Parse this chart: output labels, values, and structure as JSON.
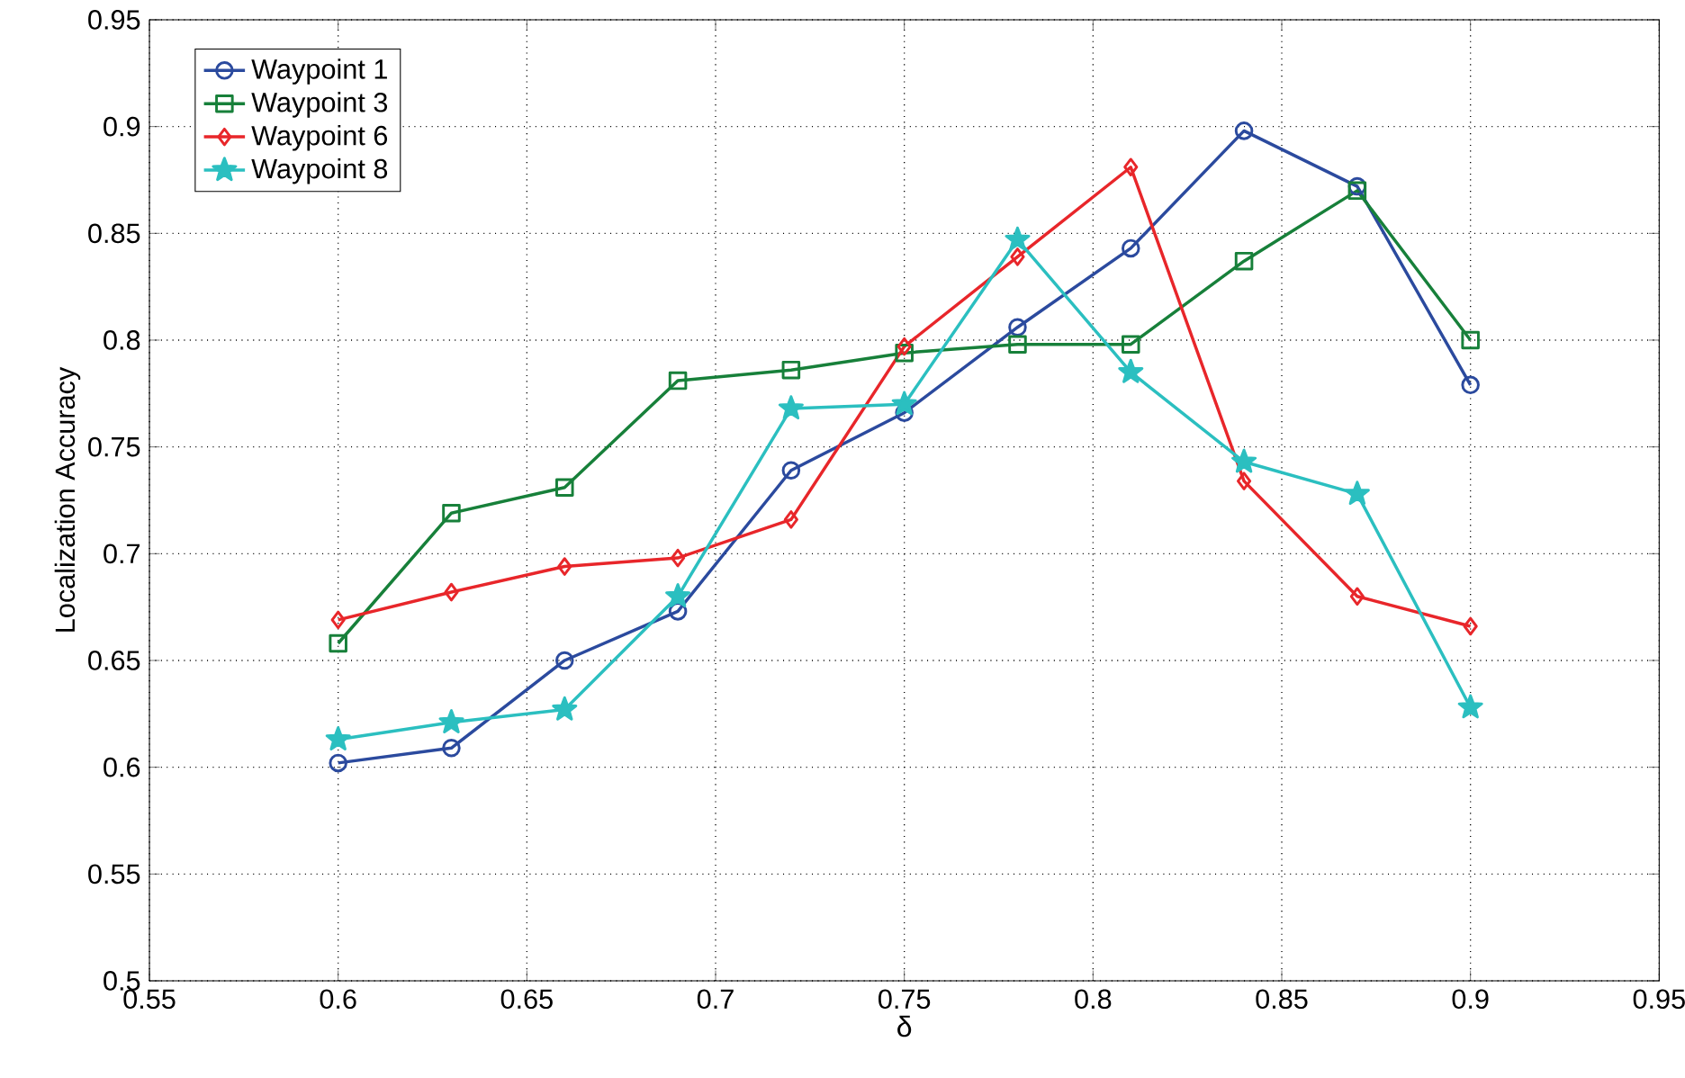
{
  "chart_data": {
    "type": "line",
    "xlabel": "δ",
    "ylabel": "Localization Accuracy",
    "x": [
      0.6,
      0.63,
      0.66,
      0.69,
      0.72,
      0.75,
      0.78,
      0.81,
      0.84,
      0.87,
      0.9
    ],
    "series": [
      {
        "name": "Waypoint 1",
        "color": "#2b4a9e",
        "marker": "circle",
        "values": [
          0.602,
          0.609,
          0.65,
          0.673,
          0.739,
          0.766,
          0.806,
          0.843,
          0.898,
          0.872,
          0.779
        ]
      },
      {
        "name": "Waypoint 3",
        "color": "#17803a",
        "marker": "square",
        "values": [
          0.658,
          0.719,
          0.731,
          0.781,
          0.786,
          0.794,
          0.798,
          0.798,
          0.837,
          0.87,
          0.8
        ]
      },
      {
        "name": "Waypoint 6",
        "color": "#e8262a",
        "marker": "diamond",
        "values": [
          0.669,
          0.682,
          0.694,
          0.698,
          0.716,
          0.797,
          0.839,
          0.881,
          0.734,
          0.68,
          0.666
        ]
      },
      {
        "name": "Waypoint 8",
        "color": "#2bbfc0",
        "marker": "star",
        "values": [
          0.613,
          0.621,
          0.627,
          0.68,
          0.768,
          0.77,
          0.847,
          0.785,
          0.743,
          0.728,
          0.628
        ]
      }
    ],
    "xlim": [
      0.55,
      0.95
    ],
    "ylim": [
      0.5,
      0.95
    ],
    "xticks": [
      0.55,
      0.6,
      0.65,
      0.7,
      0.75,
      0.8,
      0.85,
      0.9,
      0.95
    ],
    "yticks": [
      0.5,
      0.55,
      0.6,
      0.65,
      0.7,
      0.75,
      0.8,
      0.85,
      0.9,
      0.95
    ],
    "grid": true,
    "legend": "top left",
    "line_style": "solid"
  }
}
